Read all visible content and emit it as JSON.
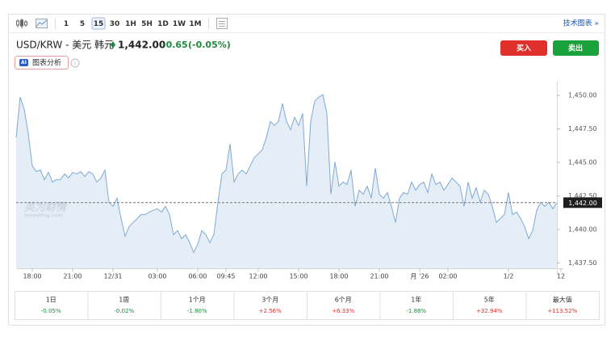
{
  "toolbar": {
    "intervals": [
      "1",
      "5",
      "15",
      "30",
      "1H",
      "5H",
      "1D",
      "1W",
      "1M"
    ],
    "selected": "15",
    "link": "技术图表 »"
  },
  "header": {
    "pair": "USD/KRW - 美元 韩元",
    "price": "1,442.00",
    "change": "-0.65",
    "change_pct": "(-0.05%)",
    "buy": "买入",
    "sell": "卖出",
    "ai_badge": "AI",
    "ai_button": "图表分析"
  },
  "chart_data": {
    "type": "area",
    "color": "#7fa9d3",
    "values": [
      1446.86,
      1449.88,
      1448.97,
      1447.16,
      1444.75,
      1444.32,
      1444.44,
      1443.72,
      1444.26,
      1443.54,
      1443.72,
      1443.72,
      1444.14,
      1443.84,
      1444.26,
      1444.14,
      1444.32,
      1443.96,
      1444.32,
      1444.14,
      1443.54,
      1443.84,
      1444.44,
      1442.03,
      1441.73,
      1442.33,
      1440.82,
      1439.49,
      1440.22,
      1440.52,
      1440.82,
      1441.12,
      1441.12,
      1441.3,
      1441.43,
      1441.55,
      1441.3,
      1441.73,
      1441.12,
      1439.61,
      1439.92,
      1439.31,
      1439.61,
      1439.01,
      1438.29,
      1438.89,
      1439.92,
      1439.61,
      1439.01,
      1439.61,
      1442.03,
      1444.14,
      1444.44,
      1446.38,
      1443.54,
      1444.14,
      1444.44,
      1444.14,
      1444.75,
      1445.35,
      1445.65,
      1445.95,
      1446.86,
      1448.07,
      1447.77,
      1448.07,
      1449.4,
      1448.07,
      1447.46,
      1448.37,
      1447.77,
      1448.67,
      1443.24,
      1448.07,
      1449.58,
      1449.88,
      1450.06,
      1448.67,
      1442.63,
      1445.05,
      1443.24,
      1443.54,
      1443.36,
      1444.44,
      1441.73,
      1442.93,
      1442.63,
      1443.24,
      1442.33,
      1444.57,
      1442.63,
      1442.33,
      1442.75,
      1441.73,
      1440.52,
      1442.33,
      1442.75,
      1442.63,
      1443.54,
      1442.93,
      1443.36,
      1443.54,
      1442.75,
      1444.14,
      1443.36,
      1443.54,
      1442.93,
      1443.36,
      1443.84,
      1443.54,
      1443.24,
      1441.73,
      1443.54,
      1442.33,
      1443.12,
      1442.03,
      1442.93,
      1442.63,
      1441.73,
      1440.52,
      1440.82,
      1441.12,
      1442.75,
      1441.12,
      1441.3,
      1440.82,
      1440.22,
      1439.31,
      1439.92,
      1441.43,
      1442.03,
      1441.73,
      1442.03,
      1441.55,
      1442.0
    ],
    "xlim": [
      0,
      134
    ],
    "xticks": [
      {
        "value": 4,
        "label": "18:00"
      },
      {
        "value": 14,
        "label": "21:00"
      },
      {
        "value": 24,
        "label": "12/31"
      },
      {
        "value": 35,
        "label": "03:00"
      },
      {
        "value": 45,
        "label": "06:00"
      },
      {
        "value": 52,
        "label": "09:45"
      },
      {
        "value": 60,
        "label": "12:00"
      },
      {
        "value": 70,
        "label": "15:00"
      },
      {
        "value": 80,
        "label": "18:00"
      },
      {
        "value": 90,
        "label": "21:00"
      },
      {
        "value": 100,
        "label": "月 '26"
      },
      {
        "value": 107,
        "label": "02:00"
      },
      {
        "value": 122,
        "label": "1/2"
      },
      {
        "value": 135,
        "label": "12"
      }
    ],
    "ylim": [
      1437.1,
      1451.1
    ],
    "yticks": [
      {
        "value": 1450,
        "label": "1,450.00"
      },
      {
        "value": 1447.5,
        "label": "1,447.50"
      },
      {
        "value": 1445,
        "label": "1,445.00"
      },
      {
        "value": 1442.5,
        "label": "1,442.50"
      },
      {
        "value": 1440,
        "label": "1,440.00"
      },
      {
        "value": 1437.5,
        "label": "1,437.50"
      }
    ],
    "current": {
      "value": 1442,
      "label": "1,442.00"
    },
    "watermark": [
      "英为财情",
      "Investing.com"
    ]
  },
  "performance": [
    {
      "period": "1日",
      "change": "-0.05%"
    },
    {
      "period": "1周",
      "change": "-0.02%"
    },
    {
      "period": "1个月",
      "change": "-1.80%"
    },
    {
      "period": "3个月",
      "change": "+2.56%"
    },
    {
      "period": "6个月",
      "change": "+6.33%"
    },
    {
      "period": "1年",
      "change": "-1.88%"
    },
    {
      "period": "5年",
      "change": "+32.94%"
    },
    {
      "period": "最大值",
      "change": "+113.52%"
    }
  ]
}
